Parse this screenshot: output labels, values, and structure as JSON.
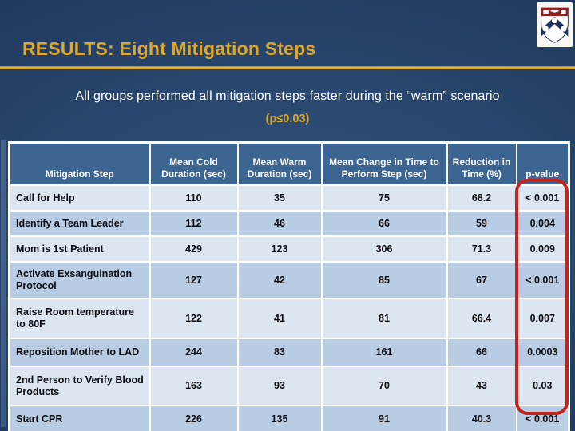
{
  "slide": {
    "title": "RESULTS: Eight Mitigation Steps",
    "subtitle": "All groups performed all mitigation steps faster during the “warm” scenario",
    "significance_note": "(p≤0.03)",
    "logo_name": "university-of-pennsylvania-shield"
  },
  "colors": {
    "background_navy": "#1E355A",
    "background_center": "#32537C",
    "accent_gold": "#DCA92E",
    "table_header_blue": "#3C6591",
    "row_light": "#DCE6F1",
    "row_medium": "#B8CCE4",
    "highlight_red": "#C2231A",
    "logo_chief_red": "#96201F",
    "logo_chevron_navy": "#203060"
  },
  "table": {
    "columns": [
      "Mitigation Step",
      "Mean Cold Duration (sec)",
      "Mean Warm Duration (sec)",
      "Mean Change in Time to Perform Step (sec)",
      "Reduction in Time (%)",
      "p-value"
    ],
    "rows": [
      [
        "Call for Help",
        "110",
        "35",
        "75",
        "68.2",
        "< 0.001"
      ],
      [
        "Identify a Team Leader",
        "112",
        "46",
        "66",
        "59",
        "0.004"
      ],
      [
        "Mom is 1st Patient",
        "429",
        "123",
        "306",
        "71.3",
        "0.009"
      ],
      [
        "Activate Exsanguination Protocol",
        "127",
        "42",
        "85",
        "67",
        "< 0.001"
      ],
      [
        "Raise Room temperature to 80F",
        "122",
        "41",
        "81",
        "66.4",
        "0.007"
      ],
      [
        "Reposition Mother to LAD",
        "244",
        "83",
        "161",
        "66",
        "0.0003"
      ],
      [
        "2nd Person to Verify Blood Products",
        "163",
        "93",
        "70",
        "43",
        "0.03"
      ],
      [
        "Start CPR",
        "226",
        "135",
        "91",
        "40.3",
        "< 0.001"
      ]
    ]
  }
}
